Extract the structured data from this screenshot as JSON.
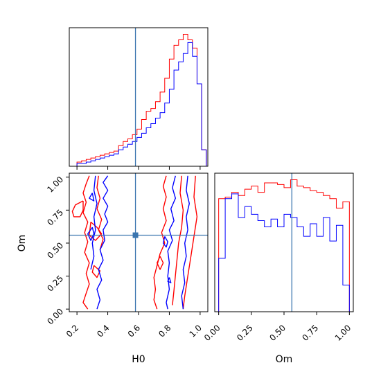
{
  "colors": {
    "series_red": "#ff0000",
    "series_blue": "#0000ff",
    "truth": "#3b75af"
  },
  "chart_data": [
    {
      "type": "histogram",
      "panel": "H0 marginal",
      "x_range": [
        0.15,
        1.05
      ],
      "x_ticks": [
        0.2,
        0.4,
        0.6,
        0.8,
        1.0
      ],
      "y_ticks_labeled": false,
      "truth_x": 0.58,
      "bin_edges": [
        0.2,
        0.23,
        0.26,
        0.29,
        0.32,
        0.35,
        0.38,
        0.41,
        0.44,
        0.47,
        0.5,
        0.53,
        0.56,
        0.59,
        0.62,
        0.65,
        0.68,
        0.71,
        0.74,
        0.77,
        0.8,
        0.83,
        0.86,
        0.89,
        0.92,
        0.95,
        0.98,
        1.01,
        1.04
      ],
      "series": [
        {
          "color": "red",
          "counts": [
            0.03,
            0.04,
            0.05,
            0.06,
            0.07,
            0.08,
            0.09,
            0.1,
            0.11,
            0.15,
            0.18,
            0.2,
            0.23,
            0.27,
            0.34,
            0.4,
            0.42,
            0.47,
            0.54,
            0.64,
            0.78,
            0.88,
            0.92,
            0.96,
            0.92,
            0.86,
            0.6,
            0.12
          ]
        },
        {
          "color": "blue",
          "counts": [
            0.02,
            0.02,
            0.03,
            0.04,
            0.05,
            0.06,
            0.07,
            0.08,
            0.09,
            0.12,
            0.14,
            0.16,
            0.18,
            0.21,
            0.24,
            0.28,
            0.31,
            0.35,
            0.39,
            0.46,
            0.56,
            0.7,
            0.76,
            0.82,
            0.9,
            0.8,
            0.6,
            0.12
          ]
        }
      ]
    },
    {
      "type": "contour",
      "panel": "H0 vs Om joint",
      "x_range": [
        0.15,
        1.05
      ],
      "y_range": [
        -0.02,
        1.03
      ],
      "x_ticks": [
        0.2,
        0.4,
        0.6,
        0.8,
        1.0
      ],
      "y_ticks": [
        0.0,
        0.25,
        0.5,
        0.75,
        1.0
      ],
      "xlabel": "H0",
      "ylabel": "Om",
      "truth": [
        0.58,
        0.56
      ],
      "series": [
        {
          "color": "red",
          "contours": [
            [
              [
                0.28,
                1.01
              ],
              [
                0.26,
                0.95
              ],
              [
                0.24,
                0.88
              ],
              [
                0.26,
                0.81
              ],
              [
                0.24,
                0.73
              ],
              [
                0.27,
                0.66
              ],
              [
                0.25,
                0.58
              ],
              [
                0.27,
                0.51
              ],
              [
                0.25,
                0.43
              ],
              [
                0.28,
                0.35
              ],
              [
                0.26,
                0.27
              ],
              [
                0.28,
                0.19
              ],
              [
                0.26,
                0.12
              ],
              [
                0.24,
                0.05
              ],
              [
                0.27,
                0.0
              ]
            ],
            [
              [
                0.24,
                0.82
              ],
              [
                0.19,
                0.79
              ],
              [
                0.17,
                0.74
              ],
              [
                0.18,
                0.7
              ],
              [
                0.22,
                0.7
              ],
              [
                0.24,
                0.75
              ],
              [
                0.24,
                0.82
              ]
            ],
            [
              [
                0.31,
                0.33
              ],
              [
                0.3,
                0.28
              ],
              [
                0.33,
                0.24
              ],
              [
                0.35,
                0.29
              ],
              [
                0.31,
                0.33
              ]
            ],
            [
              [
                0.34,
                1.01
              ],
              [
                0.33,
                0.92
              ],
              [
                0.35,
                0.84
              ],
              [
                0.33,
                0.76
              ],
              [
                0.36,
                0.68
              ],
              [
                0.34,
                0.6
              ],
              [
                0.37,
                0.53
              ],
              [
                0.35,
                0.45
              ]
            ],
            [
              [
                0.29,
                0.66
              ],
              [
                0.33,
                0.62
              ],
              [
                0.36,
                0.57
              ],
              [
                0.32,
                0.52
              ],
              [
                0.28,
                0.56
              ],
              [
                0.29,
                0.66
              ]
            ],
            [
              [
                0.78,
                1.01
              ],
              [
                0.76,
                0.93
              ],
              [
                0.78,
                0.85
              ],
              [
                0.76,
                0.76
              ],
              [
                0.78,
                0.67
              ],
              [
                0.75,
                0.58
              ],
              [
                0.77,
                0.5
              ],
              [
                0.74,
                0.42
              ],
              [
                0.72,
                0.33
              ],
              [
                0.7,
                0.24
              ],
              [
                0.71,
                0.15
              ],
              [
                0.7,
                0.07
              ],
              [
                0.72,
                0.0
              ]
            ],
            [
              [
                0.88,
                1.01
              ],
              [
                0.87,
                0.88
              ],
              [
                0.89,
                0.75
              ],
              [
                0.88,
                0.62
              ],
              [
                0.86,
                0.5
              ],
              [
                0.85,
                0.38
              ],
              [
                0.84,
                0.26
              ],
              [
                0.83,
                0.14
              ],
              [
                0.82,
                0.03
              ]
            ],
            [
              [
                0.97,
                1.01
              ],
              [
                0.96,
                0.85
              ],
              [
                0.98,
                0.7
              ],
              [
                0.96,
                0.55
              ],
              [
                0.94,
                0.4
              ],
              [
                0.92,
                0.25
              ],
              [
                0.9,
                0.1
              ],
              [
                0.89,
                0.0
              ]
            ],
            [
              [
                0.74,
                0.4
              ],
              [
                0.72,
                0.35
              ],
              [
                0.74,
                0.3
              ],
              [
                0.76,
                0.35
              ],
              [
                0.74,
                0.4
              ]
            ]
          ]
        },
        {
          "color": "blue",
          "contours": [
            [
              [
                0.4,
                1.01
              ],
              [
                0.37,
                0.96
              ],
              [
                0.4,
                0.9
              ],
              [
                0.37,
                0.84
              ],
              [
                0.4,
                0.78
              ],
              [
                0.38,
                0.72
              ],
              [
                0.4,
                0.66
              ],
              [
                0.37,
                0.6
              ],
              [
                0.38,
                0.52
              ],
              [
                0.35,
                0.45
              ],
              [
                0.37,
                0.37
              ],
              [
                0.34,
                0.3
              ],
              [
                0.36,
                0.22
              ],
              [
                0.33,
                0.15
              ],
              [
                0.35,
                0.07
              ],
              [
                0.33,
                0.0
              ]
            ],
            [
              [
                0.32,
                1.01
              ],
              [
                0.31,
                0.9
              ],
              [
                0.33,
                0.8
              ],
              [
                0.31,
                0.7
              ],
              [
                0.32,
                0.6
              ],
              [
                0.3,
                0.5
              ],
              [
                0.31,
                0.4
              ],
              [
                0.29,
                0.3
              ]
            ],
            [
              [
                0.3,
                0.88
              ],
              [
                0.28,
                0.84
              ],
              [
                0.31,
                0.82
              ],
              [
                0.3,
                0.88
              ]
            ],
            [
              [
                0.3,
                0.62
              ],
              [
                0.27,
                0.57
              ],
              [
                0.29,
                0.52
              ],
              [
                0.31,
                0.57
              ],
              [
                0.3,
                0.62
              ]
            ],
            [
              [
                0.84,
                1.01
              ],
              [
                0.82,
                0.92
              ],
              [
                0.84,
                0.84
              ],
              [
                0.81,
                0.76
              ],
              [
                0.83,
                0.67
              ],
              [
                0.8,
                0.6
              ],
              [
                0.82,
                0.52
              ],
              [
                0.79,
                0.44
              ],
              [
                0.8,
                0.35
              ],
              [
                0.79,
                0.25
              ],
              [
                0.8,
                0.15
              ],
              [
                0.78,
                0.05
              ],
              [
                0.79,
                0.0
              ]
            ],
            [
              [
                0.92,
                1.01
              ],
              [
                0.91,
                0.9
              ],
              [
                0.93,
                0.8
              ],
              [
                0.91,
                0.7
              ],
              [
                0.92,
                0.6
              ],
              [
                0.9,
                0.5
              ],
              [
                0.91,
                0.4
              ],
              [
                0.89,
                0.3
              ],
              [
                0.9,
                0.2
              ],
              [
                0.88,
                0.1
              ],
              [
                0.89,
                0.0
              ]
            ],
            [
              [
                0.77,
                0.55
              ],
              [
                0.76,
                0.5
              ],
              [
                0.78,
                0.47
              ],
              [
                0.79,
                0.51
              ],
              [
                0.77,
                0.55
              ]
            ],
            [
              [
                0.8,
                0.24
              ],
              [
                0.79,
                0.21
              ],
              [
                0.81,
                0.2
              ],
              [
                0.8,
                0.24
              ]
            ]
          ]
        }
      ]
    },
    {
      "type": "histogram",
      "panel": "Om marginal",
      "x_range": [
        -0.03,
        1.03
      ],
      "x_ticks": [
        0.0,
        0.25,
        0.5,
        0.75,
        1.0
      ],
      "x_tick_labels": [
        "0.00",
        "0.25",
        "0.50",
        "0.75",
        "1.00"
      ],
      "xlabel": "Om",
      "y_ticks_labeled": false,
      "truth_x": 0.56,
      "bin_edges": [
        0.0,
        0.05,
        0.1,
        0.15,
        0.2,
        0.25,
        0.3,
        0.35,
        0.4,
        0.45,
        0.5,
        0.55,
        0.6,
        0.65,
        0.7,
        0.75,
        0.8,
        0.85,
        0.9,
        0.95,
        1.0
      ],
      "series": [
        {
          "color": "red",
          "counts": [
            0.72,
            0.73,
            0.76,
            0.74,
            0.78,
            0.8,
            0.76,
            0.82,
            0.82,
            0.81,
            0.79,
            0.84,
            0.8,
            0.79,
            0.77,
            0.76,
            0.74,
            0.72,
            0.66,
            0.7
          ]
        },
        {
          "color": "blue",
          "counts": [
            0.34,
            0.72,
            0.75,
            0.6,
            0.67,
            0.62,
            0.58,
            0.54,
            0.59,
            0.54,
            0.62,
            0.6,
            0.54,
            0.48,
            0.56,
            0.48,
            0.6,
            0.45,
            0.55,
            0.17
          ]
        }
      ]
    }
  ]
}
